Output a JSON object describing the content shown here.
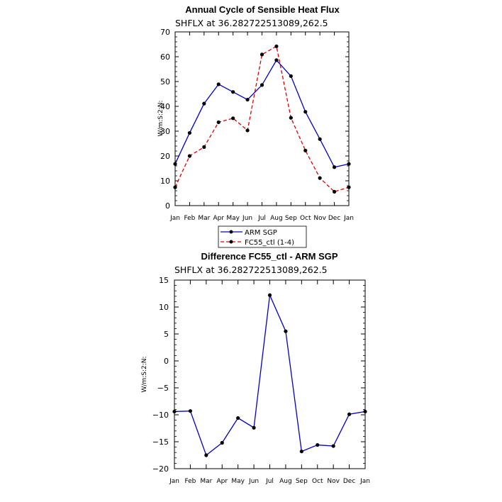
{
  "chart_data": [
    {
      "type": "line",
      "title": "Annual Cycle of Sensible Heat Flux",
      "subtitle": "SHFLX at 36.282722513089,262.5",
      "ylabel": "W/m:S:2:N:",
      "xlabel": "",
      "ylim": [
        0,
        70
      ],
      "yticks": [
        0,
        10,
        20,
        30,
        40,
        50,
        60,
        70
      ],
      "categories": [
        "Jan",
        "Feb",
        "Mar",
        "Apr",
        "May",
        "Jun",
        "Jul",
        "Aug",
        "Sep",
        "Oct",
        "Nov",
        "Dec",
        "Jan"
      ],
      "series": [
        {
          "name": "ARM SGP",
          "color": "#0000cc",
          "dash": "solid",
          "values": [
            16.8,
            29.3,
            41.1,
            48.9,
            45.8,
            42.7,
            48.6,
            58.6,
            52.2,
            37.8,
            26.8,
            15.5,
            16.8
          ]
        },
        {
          "name": "FC55_ctl (1-4)",
          "color": "#e00000",
          "dash": "dashed",
          "values": [
            7.4,
            20.0,
            23.6,
            33.6,
            35.2,
            30.3,
            60.9,
            64.2,
            35.4,
            22.2,
            11.1,
            5.6,
            7.4
          ]
        }
      ],
      "legend": [
        "ARM SGP",
        "FC55_ctl (1-4)"
      ],
      "legend_position": "bottom-center"
    },
    {
      "type": "line",
      "title": "Difference FC55_ctl - ARM SGP",
      "subtitle": "SHFLX at 36.282722513089,262.5",
      "ylabel": "W/m:S:2:N:",
      "xlabel": "",
      "ylim": [
        -20,
        15
      ],
      "yticks": [
        15,
        10,
        5,
        0,
        -5,
        -10,
        -15,
        -20
      ],
      "ytick_labels": [
        "15",
        "10",
        "5",
        "0",
        "−5",
        "−10",
        "−15",
        "−20"
      ],
      "categories": [
        "Jan",
        "Feb",
        "Mar",
        "Apr",
        "May",
        "Jun",
        "Jul",
        "Aug",
        "Sep",
        "Oct",
        "Nov",
        "Dec",
        "Jan"
      ],
      "series": [
        {
          "name": "Difference",
          "color": "#0000cc",
          "dash": "solid",
          "values": [
            -9.4,
            -9.3,
            -17.5,
            -15.2,
            -10.6,
            -12.4,
            12.2,
            5.5,
            -16.8,
            -15.6,
            -15.8,
            -9.9,
            -9.4
          ]
        }
      ]
    }
  ]
}
